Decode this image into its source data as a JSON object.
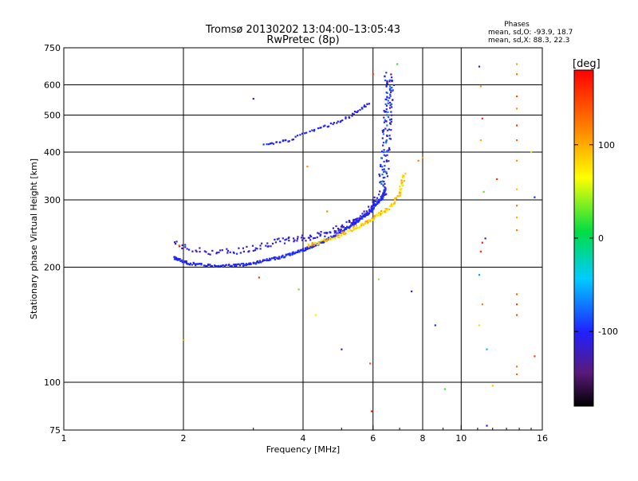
{
  "chart_data": {
    "type": "scatter",
    "title": "Tromsø 20130202 13:04:00–13:05:43",
    "subtitle": "RwPretec (8p)",
    "xlabel": "Frequency [MHz]",
    "ylabel": "Stationary phase Virtual Height [km]",
    "x_scale": "log",
    "y_scale": "log",
    "xlim": [
      1,
      16
    ],
    "ylim": [
      75,
      750
    ],
    "x_ticks": [
      1,
      2,
      4,
      6,
      8,
      10,
      16
    ],
    "x_tick_labels": [
      "1",
      "2",
      "4",
      "6",
      "8",
      "10",
      "16"
    ],
    "y_ticks": [
      75,
      100,
      200,
      300,
      400,
      500,
      600,
      750
    ],
    "y_tick_labels": [
      "75",
      "100",
      "200",
      "300",
      "400",
      "500",
      "600",
      "750"
    ],
    "grid": true,
    "stats": {
      "heading": "Phases",
      "line_o": "mean, sd,O: -93.9, 18.7",
      "line_x": "mean, sd,X:  88.3, 22.3"
    },
    "colorbar": {
      "label": "[deg]",
      "ticks": [
        100,
        0,
        -100
      ],
      "tick_labels": [
        "100",
        "0",
        "-100"
      ],
      "range": [
        -180,
        180
      ]
    },
    "o_trace_lower": {
      "name": "O-mode trace (lower)",
      "color_value": -100,
      "points": [
        [
          1.9,
          212
        ],
        [
          1.95,
          209
        ],
        [
          2.05,
          205
        ],
        [
          2.2,
          203
        ],
        [
          2.4,
          202
        ],
        [
          2.6,
          202
        ],
        [
          2.8,
          203
        ],
        [
          3.0,
          205
        ],
        [
          3.2,
          208
        ],
        [
          3.4,
          211
        ],
        [
          3.6,
          214
        ],
        [
          3.8,
          218
        ],
        [
          4.0,
          222
        ],
        [
          4.2,
          226
        ],
        [
          4.4,
          231
        ],
        [
          4.6,
          236
        ],
        [
          4.8,
          242
        ],
        [
          5.0,
          248
        ],
        [
          5.2,
          254
        ],
        [
          5.4,
          261
        ],
        [
          5.6,
          268
        ],
        [
          5.8,
          276
        ],
        [
          6.0,
          285
        ],
        [
          6.2,
          296
        ],
        [
          6.35,
          308
        ],
        [
          6.45,
          322
        ]
      ]
    },
    "o_trace_upper": {
      "name": "O-mode trace (upper, spread)",
      "color_value": -110,
      "points": [
        [
          1.9,
          232
        ],
        [
          2.1,
          222
        ],
        [
          2.4,
          219
        ],
        [
          2.7,
          220
        ],
        [
          3.0,
          225
        ],
        [
          3.3,
          231
        ],
        [
          3.6,
          235
        ],
        [
          3.9,
          238
        ],
        [
          4.2,
          240
        ],
        [
          4.5,
          244
        ],
        [
          4.8,
          250
        ],
        [
          5.1,
          257
        ],
        [
          5.4,
          266
        ],
        [
          5.7,
          276
        ],
        [
          5.95,
          287
        ],
        [
          6.15,
          302
        ]
      ]
    },
    "x_trace": {
      "name": "X-mode trace",
      "color_value": 85,
      "points": [
        [
          4.1,
          228
        ],
        [
          4.4,
          232
        ],
        [
          4.7,
          238
        ],
        [
          5.0,
          244
        ],
        [
          5.3,
          251
        ],
        [
          5.6,
          258
        ],
        [
          5.9,
          266
        ],
        [
          6.2,
          274
        ],
        [
          6.5,
          284
        ],
        [
          6.8,
          296
        ],
        [
          7.0,
          312
        ],
        [
          7.1,
          330
        ],
        [
          7.2,
          350
        ]
      ]
    },
    "o_cusp": {
      "name": "O-mode critical region",
      "color_value": -100,
      "points": [
        [
          6.3,
          300
        ],
        [
          6.35,
          330
        ],
        [
          6.4,
          360
        ],
        [
          6.45,
          400
        ],
        [
          6.5,
          440
        ],
        [
          6.52,
          480
        ],
        [
          6.55,
          520
        ],
        [
          6.6,
          560
        ],
        [
          6.62,
          600
        ],
        [
          6.55,
          640
        ]
      ]
    },
    "oblique_trace": {
      "name": "Upper oblique echo",
      "color_value": -105,
      "points": [
        [
          3.2,
          420
        ],
        [
          3.45,
          425
        ],
        [
          3.7,
          430
        ],
        [
          4.1,
          450
        ],
        [
          4.5,
          465
        ],
        [
          4.9,
          480
        ],
        [
          5.3,
          500
        ],
        [
          5.6,
          520
        ],
        [
          5.9,
          540
        ]
      ]
    },
    "scattered_points": [
      {
        "f": 3.0,
        "h": 552,
        "p": -110
      },
      {
        "f": 3.9,
        "h": 175,
        "p": 30
      },
      {
        "f": 4.1,
        "h": 367,
        "p": 110
      },
      {
        "f": 4.3,
        "h": 150,
        "p": 60
      },
      {
        "f": 4.6,
        "h": 280,
        "p": 120
      },
      {
        "f": 5.0,
        "h": 122,
        "p": -120
      },
      {
        "f": 5.9,
        "h": 112,
        "p": 140
      },
      {
        "f": 5.95,
        "h": 84,
        "p": 170
      },
      {
        "f": 6.0,
        "h": 640,
        "p": 150
      },
      {
        "f": 6.2,
        "h": 186,
        "p": 40
      },
      {
        "f": 6.9,
        "h": 680,
        "p": 20
      },
      {
        "f": 7.5,
        "h": 173,
        "p": -120
      },
      {
        "f": 7.8,
        "h": 380,
        "p": 120
      },
      {
        "f": 8.0,
        "h": 387,
        "p": 110
      },
      {
        "f": 8.6,
        "h": 141,
        "p": -100
      },
      {
        "f": 9.1,
        "h": 96,
        "p": 20
      },
      {
        "f": 11.1,
        "h": 670,
        "p": -130
      },
      {
        "f": 11.2,
        "h": 595,
        "p": 110
      },
      {
        "f": 11.3,
        "h": 490,
        "p": 160
      },
      {
        "f": 11.2,
        "h": 430,
        "p": 100
      },
      {
        "f": 11.4,
        "h": 315,
        "p": 30
      },
      {
        "f": 11.3,
        "h": 232,
        "p": 170
      },
      {
        "f": 11.2,
        "h": 220,
        "p": 160
      },
      {
        "f": 11.5,
        "h": 238,
        "p": -130
      },
      {
        "f": 11.1,
        "h": 191,
        "p": -60
      },
      {
        "f": 11.3,
        "h": 160,
        "p": 120
      },
      {
        "f": 11.1,
        "h": 141,
        "p": 50
      },
      {
        "f": 11.6,
        "h": 122,
        "p": -50
      },
      {
        "f": 11.6,
        "h": 77,
        "p": -100
      },
      {
        "f": 12.0,
        "h": 98,
        "p": 90
      },
      {
        "f": 12.3,
        "h": 340,
        "p": 160
      },
      {
        "f": 13.8,
        "h": 680,
        "p": 100
      },
      {
        "f": 13.8,
        "h": 640,
        "p": 120
      },
      {
        "f": 13.8,
        "h": 560,
        "p": 140
      },
      {
        "f": 13.8,
        "h": 520,
        "p": 110
      },
      {
        "f": 13.8,
        "h": 470,
        "p": 150
      },
      {
        "f": 13.8,
        "h": 430,
        "p": 130
      },
      {
        "f": 13.8,
        "h": 380,
        "p": 110
      },
      {
        "f": 13.8,
        "h": 320,
        "p": 90
      },
      {
        "f": 13.8,
        "h": 290,
        "p": 120
      },
      {
        "f": 13.8,
        "h": 270,
        "p": 100
      },
      {
        "f": 13.8,
        "h": 250,
        "p": 120
      },
      {
        "f": 13.8,
        "h": 170,
        "p": 130
      },
      {
        "f": 13.8,
        "h": 160,
        "p": 150
      },
      {
        "f": 13.8,
        "h": 150,
        "p": 140
      },
      {
        "f": 13.8,
        "h": 110,
        "p": 120
      },
      {
        "f": 13.8,
        "h": 105,
        "p": 130
      },
      {
        "f": 15.0,
        "h": 400,
        "p": 50
      },
      {
        "f": 15.3,
        "h": 305,
        "p": -100
      },
      {
        "f": 15.3,
        "h": 117,
        "p": 150
      },
      {
        "f": 2.0,
        "h": 129,
        "p": 110
      },
      {
        "f": 3.1,
        "h": 188,
        "p": 150
      },
      {
        "f": 1.95,
        "h": 228,
        "p": 130
      }
    ]
  }
}
